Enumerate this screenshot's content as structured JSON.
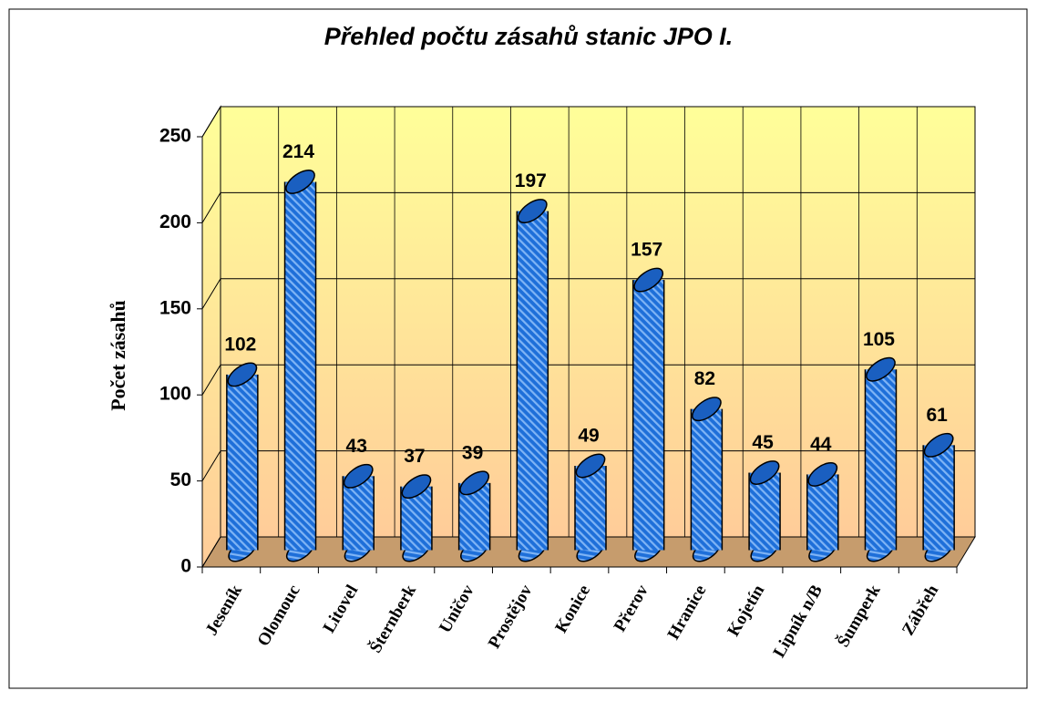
{
  "chart_data": {
    "type": "bar",
    "title": "Přehled počtu zásahů  stanic JPO I.",
    "y_label": "Počet zásahů",
    "categories": [
      "Jeseník",
      "Olomouc",
      "Litovel",
      "Šternberk",
      "Uničov",
      "Prostějov",
      "Konice",
      "Přerov",
      "Hranice",
      "Kojetín",
      "Lipník n/B",
      "Šumperk",
      "Zábřeh"
    ],
    "values": [
      102,
      214,
      43,
      37,
      39,
      197,
      49,
      157,
      82,
      45,
      44,
      105,
      61
    ],
    "color": "#1e6fd9",
    "ylim": [
      0,
      250
    ],
    "yticks": [
      0,
      50,
      100,
      150,
      200,
      250
    ],
    "grid": true
  }
}
